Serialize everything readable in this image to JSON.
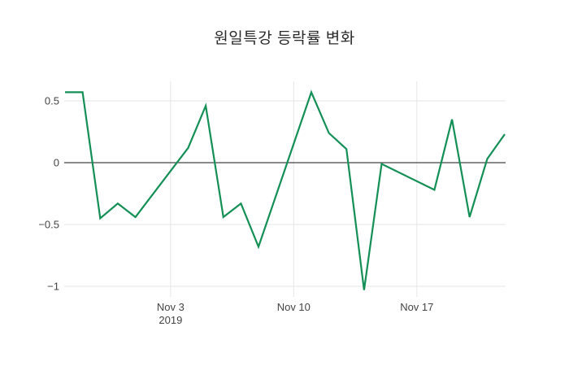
{
  "chart_data": {
    "type": "line",
    "title": "원일특강 등락률 변화",
    "legend": "none",
    "grid": true,
    "series": [
      {
        "name": "등락률",
        "color": "#148f56",
        "points": [
          {
            "date": "2019-10-28",
            "value": 0.57
          },
          {
            "date": "2019-10-29",
            "value": 0.57
          },
          {
            "date": "2019-10-30",
            "value": -0.45
          },
          {
            "date": "2019-10-31",
            "value": -0.33
          },
          {
            "date": "2019-11-01",
            "value": -0.44
          },
          {
            "date": "2019-11-04",
            "value": 0.12
          },
          {
            "date": "2019-11-05",
            "value": 0.46
          },
          {
            "date": "2019-11-06",
            "value": -0.44
          },
          {
            "date": "2019-11-07",
            "value": -0.33
          },
          {
            "date": "2019-11-08",
            "value": -0.68
          },
          {
            "date": "2019-11-11",
            "value": 0.57
          },
          {
            "date": "2019-11-12",
            "value": 0.24
          },
          {
            "date": "2019-11-13",
            "value": 0.11
          },
          {
            "date": "2019-11-14",
            "value": -1.03
          },
          {
            "date": "2019-11-15",
            "value": -0.01
          },
          {
            "date": "2019-11-18",
            "value": -0.22
          },
          {
            "date": "2019-11-19",
            "value": 0.35
          },
          {
            "date": "2019-11-20",
            "value": -0.44
          },
          {
            "date": "2019-11-21",
            "value": 0.03
          },
          {
            "date": "2019-11-22",
            "value": 0.23
          }
        ]
      }
    ],
    "x_axis": {
      "range": [
        "2019-10-28",
        "2019-11-22"
      ],
      "ticks": [
        {
          "date": "2019-11-03",
          "label": "Nov 3",
          "sublabel": "2019"
        },
        {
          "date": "2019-11-10",
          "label": "Nov 10",
          "sublabel": ""
        },
        {
          "date": "2019-11-17",
          "label": "Nov 17",
          "sublabel": ""
        }
      ]
    },
    "y_axis": {
      "range": [
        -1.09,
        0.66
      ],
      "zeroline": true,
      "ticks": [
        {
          "value": 0.5,
          "label": "0.5"
        },
        {
          "value": 0,
          "label": "0"
        },
        {
          "value": -0.5,
          "label": "−0.5"
        },
        {
          "value": -1,
          "label": "−1"
        }
      ]
    },
    "colors": {
      "line": "#148f56",
      "grid": "#e6e6e6",
      "zeroline": "#444444",
      "tick_text": "#444444",
      "title_text": "#2a2a2a",
      "background": "#ffffff"
    }
  }
}
